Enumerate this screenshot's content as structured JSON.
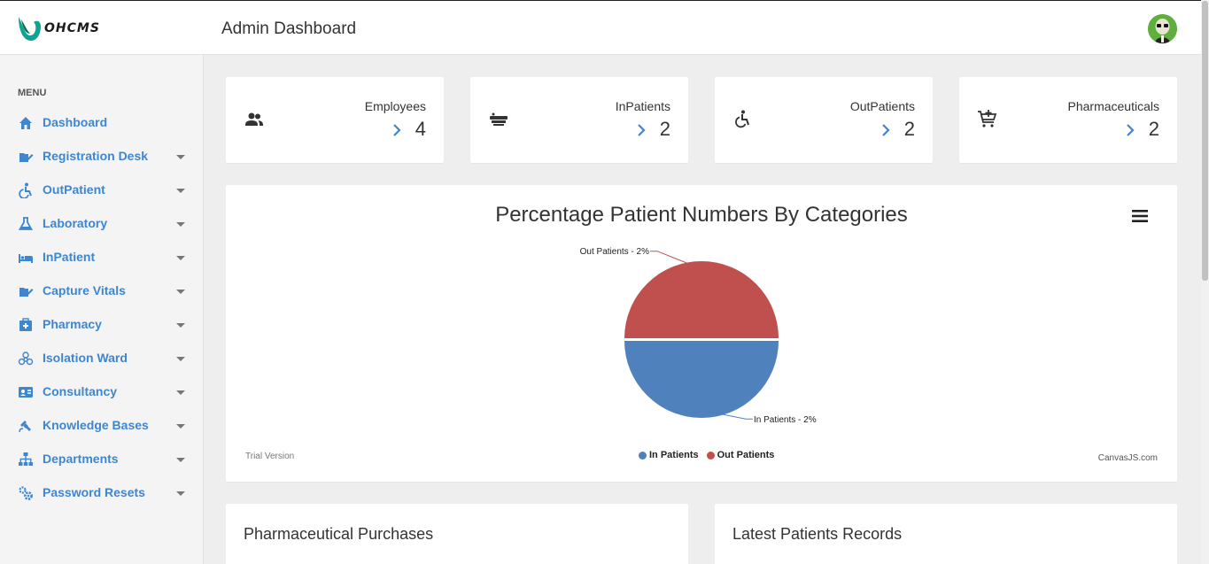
{
  "app": {
    "logo_text": "OHCMS",
    "page_title": "Admin Dashboard"
  },
  "sidebar": {
    "menu_title": "MENU",
    "items": [
      {
        "label": "Dashboard",
        "icon": "home-icon",
        "has_caret": false
      },
      {
        "label": "Registration Desk",
        "icon": "edit-icon",
        "has_caret": true
      },
      {
        "label": "OutPatient",
        "icon": "accessible-icon",
        "has_caret": true
      },
      {
        "label": "Laboratory",
        "icon": "flask-icon",
        "has_caret": true
      },
      {
        "label": "InPatient",
        "icon": "bed-icon",
        "has_caret": true
      },
      {
        "label": "Capture Vitals",
        "icon": "edit-icon",
        "has_caret": true
      },
      {
        "label": "Pharmacy",
        "icon": "medical-box-icon",
        "has_caret": true
      },
      {
        "label": "Isolation Ward",
        "icon": "biohazard-icon",
        "has_caret": true
      },
      {
        "label": "Consultancy",
        "icon": "contact-card-icon",
        "has_caret": true
      },
      {
        "label": "Knowledge Bases",
        "icon": "satellite-icon",
        "has_caret": true
      },
      {
        "label": "Departments",
        "icon": "sitemap-icon",
        "has_caret": true
      },
      {
        "label": "Password Resets",
        "icon": "gears-icon",
        "has_caret": true
      }
    ]
  },
  "stats": [
    {
      "label": "Employees",
      "value": "4",
      "icon": "people-icon"
    },
    {
      "label": "InPatients",
      "value": "2",
      "icon": "bed-icon"
    },
    {
      "label": "OutPatients",
      "value": "2",
      "icon": "wheelchair-icon"
    },
    {
      "label": "Pharmaceuticals",
      "value": "2",
      "icon": "add-cart-icon"
    }
  ],
  "chart": {
    "trial_text": "Trial Version",
    "credit": "CanvasJS.com"
  },
  "chart_data": {
    "type": "pie",
    "title": "Percentage Patient Numbers By Categories",
    "categories": [
      "In Patients",
      "Out Patients"
    ],
    "values": [
      2,
      2
    ],
    "data_labels": [
      "In Patients - 2%",
      "Out Patients - 2%"
    ],
    "colors": [
      "#4f81bc",
      "#c0504e"
    ],
    "legend_position": "bottom-center",
    "exploded": "Out Patients"
  },
  "panels": {
    "left_title": "Pharmaceutical Purchases",
    "right_title": "Latest Patients Records"
  },
  "colors": {
    "accent": "#3f86d0",
    "logo_teal": "#12a38f"
  }
}
